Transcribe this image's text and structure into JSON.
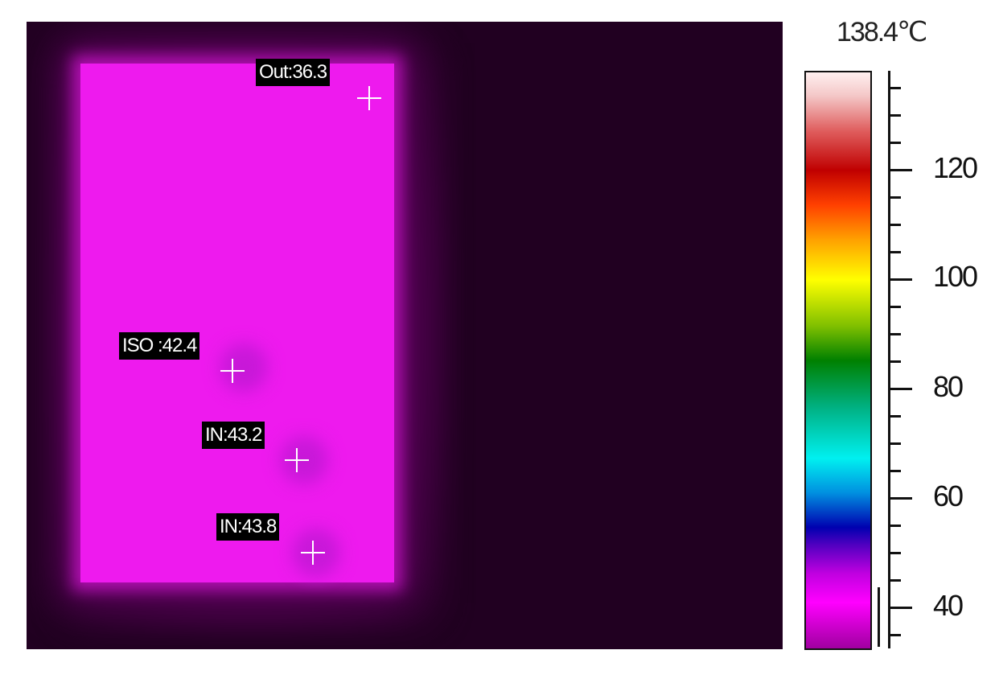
{
  "thermal_image": {
    "spots": [
      {
        "label": "Out:36.3"
      },
      {
        "label": "ISO :42.4"
      },
      {
        "label": "IN:43.2"
      },
      {
        "label": "IN:43.8"
      }
    ]
  },
  "scale": {
    "max_label": "138.4℃",
    "ticks": [
      "120",
      "100",
      "80",
      "60",
      "40"
    ],
    "palette": "iron-rainbow",
    "colors": {
      "min": "#a000a0",
      "low": "#ff00ff",
      "mid": "#00f0f0",
      "high": "#c00000",
      "max": "#fff0f0"
    }
  }
}
